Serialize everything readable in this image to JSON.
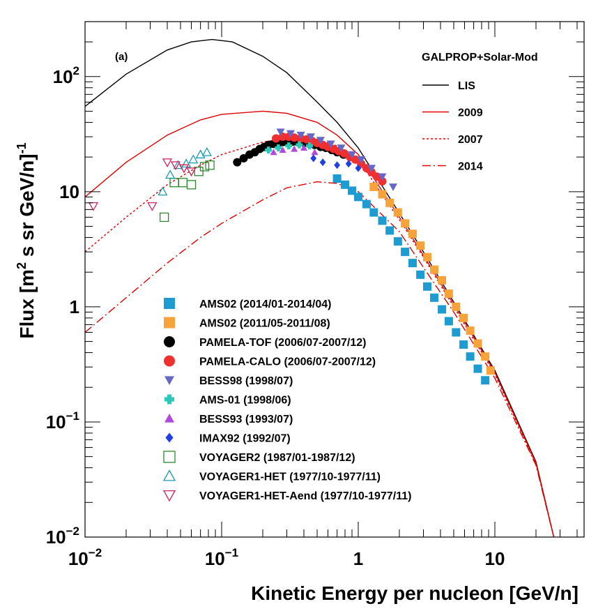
{
  "chart_data": {
    "type": "line",
    "panel_label": "(a)",
    "xlabel": "Kinetic Energy per nucleon [GeV/n]",
    "ylabel": {
      "pre": "Flux [m",
      "sup1": "2",
      "mid": " s sr GeV/n]",
      "sup2": "-1"
    },
    "x_scale": "log",
    "y_scale": "log",
    "xlim": [
      0.01,
      45
    ],
    "ylim": [
      0.01,
      300
    ],
    "x_ticks": [
      {
        "value": 0.01,
        "base": "10",
        "exp": "−2"
      },
      {
        "value": 0.1,
        "base": "10",
        "exp": "−1"
      },
      {
        "value": 1,
        "base": "1",
        "exp": ""
      },
      {
        "value": 10,
        "base": "10",
        "exp": ""
      }
    ],
    "y_ticks": [
      {
        "value": 0.01,
        "base": "10",
        "exp": "−2"
      },
      {
        "value": 0.1,
        "base": "10",
        "exp": "−1"
      },
      {
        "value": 1,
        "base": "1",
        "exp": ""
      },
      {
        "value": 10,
        "base": "10",
        "exp": ""
      },
      {
        "value": 100,
        "base": "10",
        "exp": "2"
      }
    ],
    "model_legend_title": "GALPROP+Solar-Mod",
    "models": [
      {
        "name": "LIS",
        "color": "#000000",
        "dash": "",
        "points": [
          [
            0.01,
            55
          ],
          [
            0.02,
            105
          ],
          [
            0.04,
            170
          ],
          [
            0.06,
            200
          ],
          [
            0.085,
            210
          ],
          [
            0.12,
            200
          ],
          [
            0.2,
            150
          ],
          [
            0.3,
            108
          ],
          [
            0.5,
            60
          ],
          [
            0.7,
            40
          ],
          [
            1,
            24
          ],
          [
            2,
            6.5
          ],
          [
            3,
            3.0
          ],
          [
            5,
            1.1
          ],
          [
            10,
            0.28
          ],
          [
            20,
            0.045
          ],
          [
            27,
            0.01
          ]
        ]
      },
      {
        "name": "2009",
        "color": "#e00000",
        "dash": "",
        "points": [
          [
            0.01,
            9
          ],
          [
            0.02,
            18
          ],
          [
            0.04,
            31
          ],
          [
            0.07,
            42
          ],
          [
            0.1,
            47
          ],
          [
            0.2,
            50
          ],
          [
            0.3,
            48
          ],
          [
            0.5,
            40
          ],
          [
            0.7,
            31
          ],
          [
            1,
            21
          ],
          [
            2,
            6.0
          ],
          [
            3,
            2.8
          ],
          [
            5,
            1.05
          ],
          [
            10,
            0.27
          ],
          [
            20,
            0.044
          ],
          [
            27,
            0.01
          ]
        ]
      },
      {
        "name": "2007",
        "color": "#e00000",
        "dash": "3,3",
        "points": [
          [
            0.01,
            3.0
          ],
          [
            0.02,
            6.0
          ],
          [
            0.04,
            11.5
          ],
          [
            0.07,
            17
          ],
          [
            0.1,
            21
          ],
          [
            0.2,
            27
          ],
          [
            0.3,
            29
          ],
          [
            0.5,
            28.5
          ],
          [
            0.7,
            25
          ],
          [
            1,
            19
          ],
          [
            2,
            5.7
          ],
          [
            3,
            2.7
          ],
          [
            5,
            1.0
          ],
          [
            10,
            0.26
          ],
          [
            20,
            0.043
          ],
          [
            27,
            0.01
          ]
        ]
      },
      {
        "name": "2014",
        "color": "#e00000",
        "dash": "12,4,2,4",
        "points": [
          [
            0.01,
            0.6
          ],
          [
            0.02,
            1.2
          ],
          [
            0.04,
            2.4
          ],
          [
            0.07,
            4.0
          ],
          [
            0.1,
            5.3
          ],
          [
            0.2,
            8.5
          ],
          [
            0.3,
            10.8
          ],
          [
            0.5,
            12.2
          ],
          [
            0.7,
            11.8
          ],
          [
            1,
            10
          ],
          [
            2,
            4.5
          ],
          [
            3,
            2.2
          ],
          [
            5,
            0.9
          ],
          [
            10,
            0.24
          ],
          [
            20,
            0.042
          ],
          [
            27,
            0.01
          ]
        ]
      }
    ],
    "data_legend": [
      {
        "label": "AMS02 (2014/01-2014/04)",
        "marker": "square",
        "color": "#1e9bd0"
      },
      {
        "label": "AMS02 (2011/05-2011/08)",
        "marker": "square",
        "color": "#f7a33c"
      },
      {
        "label": "PAMELA-TOF (2006/07-2007/12)",
        "marker": "circle",
        "color": "#000000"
      },
      {
        "label": "PAMELA-CALO (2006/07-2007/12)",
        "marker": "circle",
        "color": "#f03030"
      },
      {
        "label": "BESS98 (1998/07)",
        "marker": "tri-down",
        "color": "#6668c8"
      },
      {
        "label": "AMS-01 (1998/06)",
        "marker": "cross",
        "color": "#2cc8b8"
      },
      {
        "label": "BESS93 (1993/07)",
        "marker": "tri-up",
        "color": "#b048e0"
      },
      {
        "label": "IMAX92 (1992/07)",
        "marker": "diamond",
        "color": "#2040e0"
      },
      {
        "label": "VOYAGER2 (1987/01-1987/12)",
        "marker": "open-square",
        "color": "#2a8a2a"
      },
      {
        "label": "VOYAGER1-HET (1977/10-1977/11)",
        "marker": "open-tri-up",
        "color": "#1a9ab0"
      },
      {
        "label": "VOYAGER1-HET-Aend (1977/10-1977/11)",
        "marker": "open-tri-down",
        "color": "#d02060"
      }
    ],
    "series": [
      {
        "name": "AMS02 (2014/01-2014/04)",
        "marker": "square",
        "color": "#1e9bd0",
        "size": 12,
        "points": [
          [
            0.7,
            13
          ],
          [
            0.8,
            11.5
          ],
          [
            0.9,
            10.2
          ],
          [
            1.0,
            9
          ],
          [
            1.15,
            7.8
          ],
          [
            1.3,
            6.6
          ],
          [
            1.5,
            5.6
          ],
          [
            1.7,
            4.6
          ],
          [
            1.95,
            3.7
          ],
          [
            2.2,
            3.0
          ],
          [
            2.5,
            2.4
          ],
          [
            2.85,
            1.9
          ],
          [
            3.2,
            1.5
          ],
          [
            3.6,
            1.2
          ],
          [
            4.1,
            0.95
          ],
          [
            4.6,
            0.75
          ],
          [
            5.2,
            0.6
          ],
          [
            5.9,
            0.47
          ],
          [
            6.6,
            0.37
          ],
          [
            7.5,
            0.29
          ],
          [
            8.5,
            0.23
          ]
        ]
      },
      {
        "name": "AMS02 (2011/05-2011/08)",
        "marker": "square",
        "color": "#f7a33c",
        "size": 12,
        "points": [
          [
            1.3,
            11
          ],
          [
            1.5,
            9.5
          ],
          [
            1.7,
            8
          ],
          [
            1.95,
            6.6
          ],
          [
            2.2,
            5.3
          ],
          [
            2.5,
            4.3
          ],
          [
            2.85,
            3.4
          ],
          [
            3.2,
            2.7
          ],
          [
            3.6,
            2.1
          ],
          [
            4.1,
            1.7
          ],
          [
            4.6,
            1.3
          ],
          [
            5.2,
            1.0
          ],
          [
            5.9,
            0.8
          ],
          [
            6.6,
            0.62
          ],
          [
            7.5,
            0.48
          ],
          [
            8.5,
            0.37
          ],
          [
            9.3,
            0.28
          ]
        ]
      },
      {
        "name": "PAMELA-TOF (2006/07-2007/12)",
        "marker": "circle",
        "color": "#000000",
        "size": 8,
        "points": [
          [
            0.13,
            18
          ],
          [
            0.145,
            19.5
          ],
          [
            0.16,
            21
          ],
          [
            0.175,
            22
          ],
          [
            0.19,
            23.5
          ],
          [
            0.205,
            24.5
          ],
          [
            0.22,
            25.5
          ],
          [
            0.24,
            26
          ],
          [
            0.26,
            26.5
          ],
          [
            0.28,
            27
          ],
          [
            0.3,
            27
          ],
          [
            0.33,
            27.2
          ],
          [
            0.36,
            27
          ],
          [
            0.4,
            26.5
          ],
          [
            0.44,
            26
          ],
          [
            0.48,
            25.5
          ],
          [
            0.53,
            24.5
          ],
          [
            0.58,
            24
          ],
          [
            0.64,
            23
          ],
          [
            0.7,
            22
          ],
          [
            0.78,
            21
          ]
        ]
      },
      {
        "name": "PAMELA-CALO (2006/07-2007/12)",
        "marker": "circle",
        "color": "#f03030",
        "size": 8,
        "points": [
          [
            0.25,
            29
          ],
          [
            0.28,
            30
          ],
          [
            0.31,
            30
          ],
          [
            0.34,
            29.5
          ],
          [
            0.38,
            29
          ],
          [
            0.42,
            28.5
          ],
          [
            0.46,
            27.5
          ],
          [
            0.5,
            26.5
          ],
          [
            0.55,
            25.5
          ],
          [
            0.6,
            24.5
          ],
          [
            0.66,
            23.5
          ],
          [
            0.72,
            22.5
          ],
          [
            0.79,
            21.5
          ],
          [
            0.87,
            20
          ],
          [
            0.95,
            19
          ],
          [
            1.05,
            17.5
          ],
          [
            1.15,
            16
          ],
          [
            1.25,
            14.8
          ],
          [
            1.37,
            13.5
          ],
          [
            1.5,
            12.3
          ]
        ]
      },
      {
        "name": "BESS98 (1998/07)",
        "marker": "tri-down",
        "color": "#6668c8",
        "size": 8,
        "points": [
          [
            0.27,
            33
          ],
          [
            0.32,
            32
          ],
          [
            0.38,
            31
          ],
          [
            0.45,
            30
          ],
          [
            0.53,
            28
          ],
          [
            0.63,
            26
          ],
          [
            0.75,
            24
          ],
          [
            0.9,
            21
          ],
          [
            1.05,
            19
          ],
          [
            1.25,
            16
          ],
          [
            1.5,
            13.5
          ],
          [
            1.8,
            11
          ]
        ]
      },
      {
        "name": "AMS-01 (1998/06)",
        "marker": "cross",
        "color": "#2cc8b8",
        "size": 6,
        "points": [
          [
            0.22,
            23
          ],
          [
            0.26,
            24
          ],
          [
            0.31,
            25
          ],
          [
            0.37,
            25.5
          ],
          [
            0.44,
            25
          ]
        ]
      },
      {
        "name": "BESS93 (1993/07)",
        "marker": "tri-up",
        "color": "#b048e0",
        "size": 6,
        "points": [
          [
            0.24,
            22
          ],
          [
            0.28,
            23
          ],
          [
            0.34,
            23.5
          ],
          [
            0.4,
            24
          ],
          [
            0.48,
            22
          ]
        ]
      },
      {
        "name": "IMAX92 (1992/07)",
        "marker": "diamond",
        "color": "#2040e0",
        "size": 7,
        "points": [
          [
            0.47,
            19.5
          ],
          [
            0.55,
            18
          ],
          [
            0.7,
            17
          ],
          [
            0.85,
            17.5
          ],
          [
            1.0,
            16
          ]
        ]
      },
      {
        "name": "VOYAGER2 (1987/01-1987/12)",
        "marker": "open-square",
        "color": "#2a8a2a",
        "size": 8,
        "points": [
          [
            0.038,
            6
          ],
          [
            0.045,
            12
          ],
          [
            0.052,
            12
          ],
          [
            0.06,
            11.5
          ],
          [
            0.068,
            15
          ],
          [
            0.075,
            16.5
          ],
          [
            0.082,
            17
          ]
        ]
      },
      {
        "name": "VOYAGER1-HET (1977/10-1977/11)",
        "marker": "open-tri-up",
        "color": "#1a9ab0",
        "size": 8,
        "points": [
          [
            0.037,
            10
          ],
          [
            0.042,
            14
          ],
          [
            0.048,
            17
          ],
          [
            0.055,
            17.5
          ],
          [
            0.062,
            19
          ],
          [
            0.07,
            21
          ],
          [
            0.078,
            22
          ]
        ]
      },
      {
        "name": "VOYAGER1-HET-Aend (1977/10-1977/11)",
        "marker": "open-tri-down",
        "color": "#d02060",
        "size": 8,
        "points": [
          [
            0.0115,
            7.5
          ],
          [
            0.031,
            7.5
          ],
          [
            0.04,
            18
          ],
          [
            0.046,
            17
          ],
          [
            0.053,
            16
          ],
          [
            0.06,
            15
          ]
        ]
      }
    ]
  }
}
